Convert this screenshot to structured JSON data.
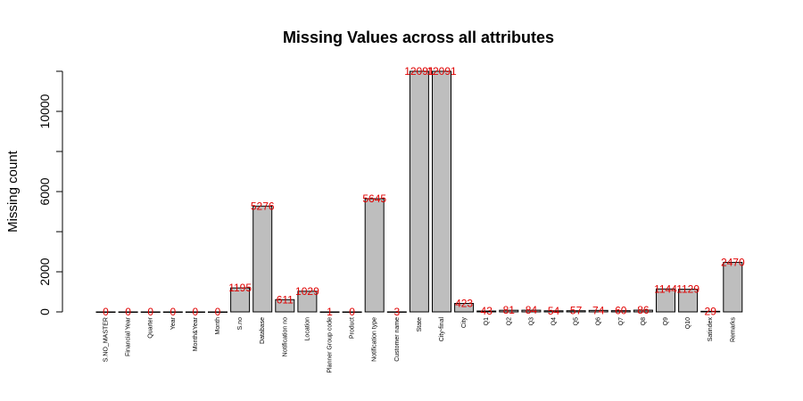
{
  "chart_data": {
    "type": "bar",
    "title": "Missing Values across all attributes",
    "xlabel": "",
    "ylabel": "Missing count",
    "ylim": [
      0,
      12000
    ],
    "yticks": [
      0,
      2000,
      6000,
      10000
    ],
    "grid": false,
    "bar_color": "#bebebe",
    "label_color": "#e00000",
    "categories": [
      "S.NO_MASTER",
      "Financial Year",
      "Quarter",
      "Year",
      "Month&Year",
      "Month",
      "S.no",
      "Database",
      "Notification no",
      "Location",
      "Planner Group code",
      "Product",
      "Notification type",
      "Customer name",
      "State",
      "City-final",
      "City",
      "Q1",
      "Q2",
      "Q3",
      "Q4",
      "Q5",
      "Q6",
      "Q7",
      "Q8",
      "Q9",
      "Q10",
      "Satindex",
      "Remarks"
    ],
    "values": [
      0,
      0,
      0,
      0,
      0,
      0,
      1195,
      5276,
      611,
      1029,
      1,
      0,
      5645,
      3,
      12091,
      12091,
      423,
      43,
      81,
      84,
      54,
      57,
      74,
      60,
      86,
      1144,
      1129,
      29,
      2470
    ]
  }
}
